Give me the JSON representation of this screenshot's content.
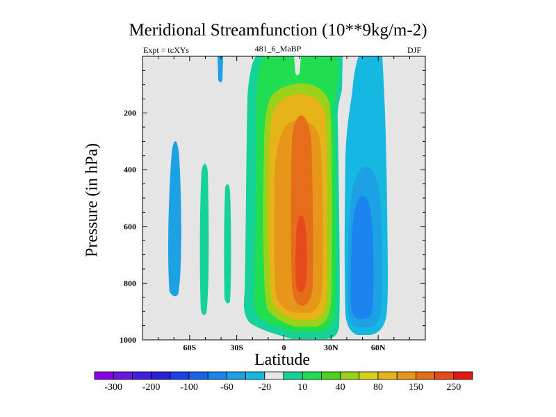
{
  "chart_data": {
    "type": "heatmap",
    "title": "Meridional Streamfunction (10**9kg/m-2)",
    "subtitle_left": "Expt = tcXYs",
    "subtitle_center": "481_6_MaBP",
    "subtitle_right": "DJF",
    "xlabel": "Latitude",
    "ylabel": "Pressure (in hPa)",
    "xlim": [
      -90,
      90
    ],
    "ylim": [
      1000,
      0
    ],
    "x_ticks": [
      {
        "value": -60,
        "label": "60S"
      },
      {
        "value": -30,
        "label": "30S"
      },
      {
        "value": 0,
        "label": "0"
      },
      {
        "value": 30,
        "label": "30N"
      },
      {
        "value": 60,
        "label": "60N"
      }
    ],
    "y_ticks": [
      {
        "value": 200,
        "label": "200"
      },
      {
        "value": 400,
        "label": "400"
      },
      {
        "value": 600,
        "label": "600"
      },
      {
        "value": 800,
        "label": "800"
      },
      {
        "value": 1000,
        "label": "1000"
      }
    ],
    "background_color": "#e5e5e5",
    "colorbar": {
      "colors": [
        "#8a00e6",
        "#6a18e0",
        "#4020de",
        "#2a20da",
        "#1e3ee8",
        "#1a62ea",
        "#1c84ee",
        "#1ca2e4",
        "#14b8e0",
        "#e6e6e6",
        "#14d29a",
        "#20de50",
        "#4cd21a",
        "#9ad21a",
        "#d2d21a",
        "#e6b418",
        "#e69618",
        "#e66e1a",
        "#e64a1a",
        "#e01a12"
      ],
      "labels": [
        "-300",
        "-200",
        "-100",
        "-60",
        "-20",
        "10",
        "40",
        "80",
        "150",
        "250"
      ],
      "label_after_box": [
        0,
        2,
        4,
        6,
        8,
        10,
        12,
        14,
        16,
        18
      ]
    },
    "contour_regions": [
      {
        "level": "-20",
        "color": "#1ca2e4",
        "lat_range": [
          -64,
          -60
        ],
        "pressure_range": [
          290,
          830
        ]
      },
      {
        "level": "10",
        "color": "#14d29a",
        "lat_range": [
          -44,
          -40
        ],
        "pressure_range": [
          380,
          900
        ]
      },
      {
        "level": "10",
        "color": "#14d29a",
        "lat_range": [
          -35,
          -34
        ],
        "pressure_range": [
          270,
          840
        ]
      },
      {
        "level": "-20",
        "color": "#1ca2e4",
        "lat_range": [
          -41,
          -39
        ],
        "pressure_range": [
          0,
          80
        ]
      },
      {
        "level": "10",
        "color": "#14d29a",
        "lat_range": [
          -19,
          28
        ],
        "pressure_range": [
          0,
          1000
        ]
      },
      {
        "level": "40",
        "color": "#20de50",
        "lat_range": [
          -16,
          26
        ],
        "pressure_range": [
          0,
          970
        ]
      },
      {
        "level": "80",
        "color": "#9ad21a",
        "lat_range": [
          -12,
          24
        ],
        "pressure_range": [
          100,
          950
        ]
      },
      {
        "level": "150",
        "color": "#e6b418",
        "lat_range": [
          -9,
          22
        ],
        "pressure_range": [
          130,
          930
        ]
      },
      {
        "level": "150",
        "color": "#e69618",
        "lat_range": [
          -6,
          18
        ],
        "pressure_range": [
          230,
          890
        ]
      },
      {
        "level": "250",
        "color": "#e66e1a",
        "lat_range": [
          6,
          16
        ],
        "pressure_range": [
          200,
          880
        ]
      },
      {
        "level": "250",
        "color": "#e64a1a",
        "lat_range": [
          8,
          13
        ],
        "pressure_range": [
          560,
          820
        ]
      },
      {
        "level": "-20",
        "color": "#14b8e0",
        "lat_range": [
          31,
          58
        ],
        "pressure_range": [
          0,
          1000
        ]
      },
      {
        "level": "-60",
        "color": "#1ca2e4",
        "lat_range": [
          34,
          54
        ],
        "pressure_range": [
          260,
          980
        ]
      },
      {
        "level": "-100",
        "color": "#1c84ee",
        "lat_range": [
          37,
          50
        ],
        "pressure_range": [
          300,
          940
        ]
      }
    ]
  }
}
